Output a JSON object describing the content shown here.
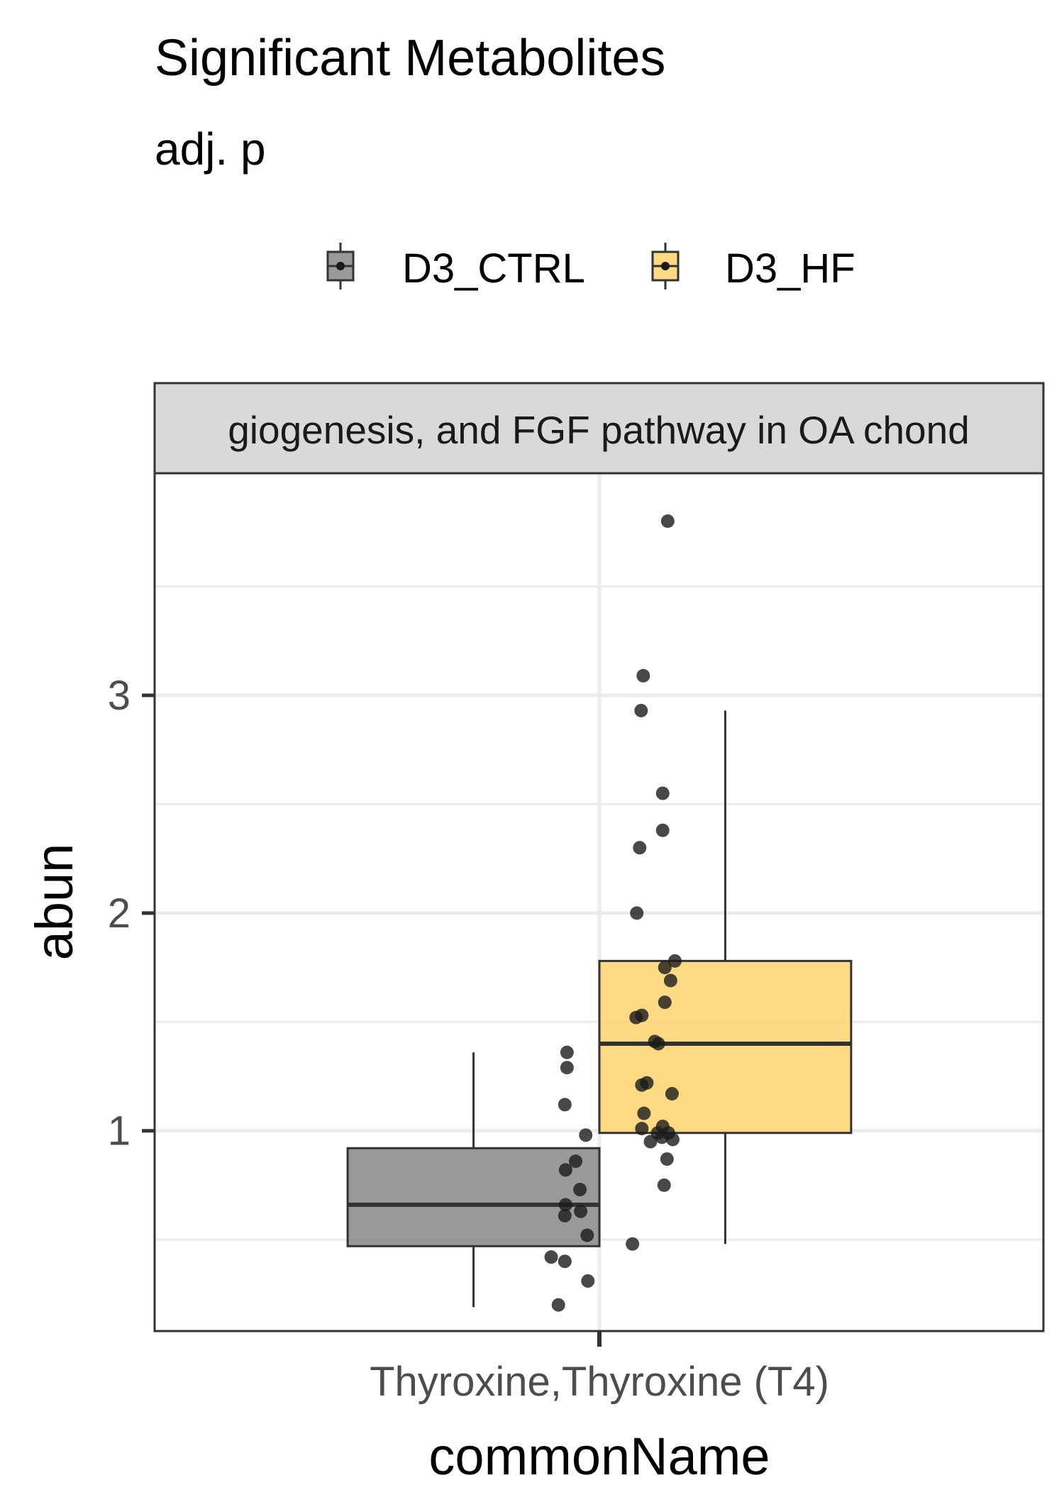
{
  "title": "Significant Metabolites",
  "subtitle": "adj. p",
  "colors": {
    "D3_CTRL": "#808080",
    "D3_HF": "#FFD166",
    "strip_bg": "#D9D9D9",
    "grid": "#EBEBEB",
    "point": "#1a1a1a"
  },
  "chart_data": {
    "type": "box",
    "title": "Significant Metabolites",
    "subtitle": "adj. p",
    "facet_label": "giogenesis, and FGF pathway in OA chond",
    "xlabel": "commonName",
    "ylabel": "abun",
    "categories": [
      "Thyroxine,Thyroxine (T4)"
    ],
    "ylim": [
      0.08,
      4.02
    ],
    "y_ticks": [
      1,
      2,
      3
    ],
    "y_minor": [
      0.5,
      1.5,
      2.5,
      3.5
    ],
    "grid": true,
    "legend_position": "top",
    "series": [
      {
        "name": "D3_CTRL",
        "color": "#808080",
        "box": {
          "whisker_low": 0.19,
          "q1": 0.47,
          "median": 0.66,
          "q3": 0.92,
          "whisker_high": 1.36
        },
        "points": [
          {
            "x": 0.955,
            "y": 1.36
          },
          {
            "x": 0.955,
            "y": 1.29
          },
          {
            "x": 0.952,
            "y": 1.12
          },
          {
            "x": 0.981,
            "y": 0.98
          },
          {
            "x": 0.967,
            "y": 0.86
          },
          {
            "x": 0.953,
            "y": 0.82
          },
          {
            "x": 0.973,
            "y": 0.73
          },
          {
            "x": 0.953,
            "y": 0.66
          },
          {
            "x": 0.974,
            "y": 0.63
          },
          {
            "x": 0.952,
            "y": 0.61
          },
          {
            "x": 0.983,
            "y": 0.52
          },
          {
            "x": 0.933,
            "y": 0.42
          },
          {
            "x": 0.952,
            "y": 0.4
          },
          {
            "x": 0.984,
            "y": 0.31
          },
          {
            "x": 0.943,
            "y": 0.2
          }
        ]
      },
      {
        "name": "D3_HF",
        "color": "#FFD166",
        "box": {
          "whisker_low": 0.48,
          "q1": 0.99,
          "median": 1.4,
          "q3": 1.78,
          "whisker_high": 2.93
        },
        "points": [
          {
            "x": 1.095,
            "y": 3.8
          },
          {
            "x": 1.061,
            "y": 3.09
          },
          {
            "x": 1.058,
            "y": 2.93
          },
          {
            "x": 1.088,
            "y": 2.55
          },
          {
            "x": 1.088,
            "y": 2.38
          },
          {
            "x": 1.056,
            "y": 2.3
          },
          {
            "x": 1.052,
            "y": 2.0
          },
          {
            "x": 1.105,
            "y": 1.78
          },
          {
            "x": 1.091,
            "y": 1.75
          },
          {
            "x": 1.099,
            "y": 1.69
          },
          {
            "x": 1.091,
            "y": 1.59
          },
          {
            "x": 1.059,
            "y": 1.53
          },
          {
            "x": 1.051,
            "y": 1.52
          },
          {
            "x": 1.077,
            "y": 1.41
          },
          {
            "x": 1.082,
            "y": 1.4
          },
          {
            "x": 1.066,
            "y": 1.22
          },
          {
            "x": 1.059,
            "y": 1.21
          },
          {
            "x": 1.101,
            "y": 1.17
          },
          {
            "x": 1.062,
            "y": 1.08
          },
          {
            "x": 1.088,
            "y": 1.02
          },
          {
            "x": 1.059,
            "y": 1.01
          },
          {
            "x": 1.096,
            "y": 0.99
          },
          {
            "x": 1.081,
            "y": 0.99
          },
          {
            "x": 1.087,
            "y": 0.97
          },
          {
            "x": 1.102,
            "y": 0.96
          },
          {
            "x": 1.071,
            "y": 0.95
          },
          {
            "x": 1.094,
            "y": 0.87
          },
          {
            "x": 1.09,
            "y": 0.75
          },
          {
            "x": 1.046,
            "y": 0.48
          }
        ]
      }
    ]
  }
}
